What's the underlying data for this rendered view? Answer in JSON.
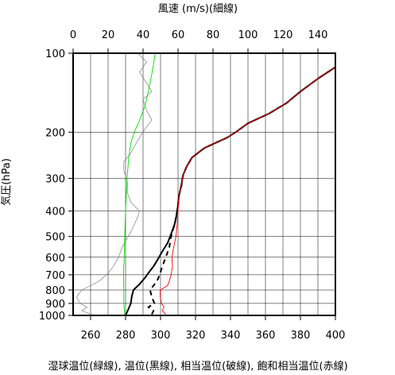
{
  "chart_data": {
    "type": "line",
    "title": "",
    "top_axis_label": "風速 (m/s)(細線)",
    "left_axis_label": "気圧(hPa)",
    "bottom_axis_label": "湿球温位(緑線), 温位(黒線), 相当温位(破線), 飽和相当温位(赤線)",
    "bottom_axis": {
      "range": [
        250,
        400
      ],
      "ticks": [
        "260",
        "280",
        "300",
        "320",
        "340",
        "360",
        "380",
        "400"
      ]
    },
    "top_axis": {
      "range": [
        0,
        150
      ],
      "ticks": [
        "0",
        "20",
        "40",
        "60",
        "80",
        "100",
        "120",
        "140"
      ]
    },
    "pressure_axis": {
      "scale": "log",
      "range": [
        1000,
        100
      ],
      "ticks": [
        "100",
        "200",
        "300",
        "400",
        "500",
        "600",
        "700",
        "800",
        "900",
        "1000"
      ]
    },
    "grid": true,
    "series": [
      {
        "id": "wind",
        "name": "風速",
        "axis": "top",
        "color": "#808080",
        "style": "thin",
        "points": [
          [
            12,
            1000
          ],
          [
            5,
            960
          ],
          [
            8,
            930
          ],
          [
            4,
            900
          ],
          [
            2,
            850
          ],
          [
            5,
            800
          ],
          [
            15,
            740
          ],
          [
            20,
            690
          ],
          [
            23,
            650
          ],
          [
            26,
            600
          ],
          [
            28,
            550
          ],
          [
            30,
            520
          ],
          [
            33,
            480
          ],
          [
            35,
            450
          ],
          [
            37,
            420
          ],
          [
            38,
            400
          ],
          [
            33,
            370
          ],
          [
            31,
            340
          ],
          [
            31,
            310
          ],
          [
            29,
            280
          ],
          [
            29,
            260
          ],
          [
            33,
            240
          ],
          [
            37,
            215
          ],
          [
            41,
            195
          ],
          [
            45,
            180
          ],
          [
            42,
            165
          ],
          [
            40,
            150
          ],
          [
            45,
            140
          ],
          [
            42,
            130
          ],
          [
            38,
            118
          ],
          [
            42,
            108
          ],
          [
            37,
            100
          ]
        ]
      },
      {
        "id": "theta_w",
        "name": "湿球温位",
        "axis": "bottom",
        "color": "#00e000",
        "style": "solid",
        "points": [
          [
            279.5,
            1000
          ],
          [
            279,
            900
          ],
          [
            279,
            800
          ],
          [
            278.8,
            700
          ],
          [
            279.2,
            600
          ],
          [
            279.5,
            500
          ],
          [
            280,
            400
          ],
          [
            280.8,
            300
          ],
          [
            281.8,
            250
          ],
          [
            283,
            220
          ],
          [
            285,
            200
          ],
          [
            288,
            180
          ],
          [
            291,
            160
          ],
          [
            293,
            140
          ],
          [
            295,
            120
          ],
          [
            296,
            110
          ],
          [
            297,
            100
          ]
        ]
      },
      {
        "id": "theta",
        "name": "温位",
        "axis": "bottom",
        "color": "#000000",
        "style": "thick",
        "points": [
          [
            280,
            1000
          ],
          [
            281.5,
            950
          ],
          [
            283,
            900
          ],
          [
            283.5,
            850
          ],
          [
            284.5,
            800
          ],
          [
            288,
            760
          ],
          [
            291,
            720
          ],
          [
            293,
            690
          ],
          [
            296,
            650
          ],
          [
            298.5,
            610
          ],
          [
            301,
            570
          ],
          [
            304,
            530
          ],
          [
            306,
            490
          ],
          [
            308,
            450
          ],
          [
            309,
            420
          ],
          [
            310,
            380
          ],
          [
            310.5,
            350
          ],
          [
            311.8,
            320
          ],
          [
            312.5,
            300
          ],
          [
            313,
            290
          ],
          [
            315,
            270
          ],
          [
            318,
            250
          ],
          [
            325,
            230
          ],
          [
            338,
            210
          ],
          [
            343,
            200
          ],
          [
            350,
            185
          ],
          [
            362,
            170
          ],
          [
            372,
            155
          ],
          [
            380,
            140
          ],
          [
            390,
            125
          ],
          [
            400,
            113
          ]
        ]
      },
      {
        "id": "theta_e",
        "name": "相当温位",
        "axis": "bottom",
        "color": "#000000",
        "style": "dashed",
        "points": [
          [
            295,
            990
          ],
          [
            296,
            960
          ],
          [
            293,
            930
          ],
          [
            296.5,
            900
          ],
          [
            295,
            850
          ],
          [
            294,
            800
          ],
          [
            298,
            740
          ],
          [
            299.5,
            700
          ],
          [
            301,
            650
          ],
          [
            303,
            600
          ],
          [
            305,
            550
          ],
          [
            306,
            500
          ],
          [
            308,
            450
          ],
          [
            309,
            420
          ],
          [
            310,
            380
          ],
          [
            310.5,
            350
          ],
          [
            312,
            320
          ],
          [
            312.5,
            300
          ],
          [
            313,
            290
          ],
          [
            315,
            270
          ],
          [
            318,
            250
          ],
          [
            325,
            230
          ],
          [
            338,
            210
          ],
          [
            343,
            200
          ],
          [
            350,
            185
          ],
          [
            362,
            170
          ],
          [
            372,
            155
          ],
          [
            380,
            140
          ],
          [
            390,
            125
          ],
          [
            400,
            113
          ]
        ]
      },
      {
        "id": "theta_es",
        "name": "飽和相当温位",
        "axis": "bottom",
        "color": "#ff0000",
        "style": "solid",
        "points": [
          [
            303,
            990
          ],
          [
            301,
            960
          ],
          [
            302,
            930
          ],
          [
            300.5,
            900
          ],
          [
            299.8,
            850
          ],
          [
            299.8,
            800
          ],
          [
            304,
            770
          ],
          [
            305,
            740
          ],
          [
            306,
            700
          ],
          [
            306.8,
            650
          ],
          [
            306.5,
            600
          ],
          [
            307.5,
            550
          ],
          [
            308.8,
            500
          ],
          [
            309.5,
            450
          ],
          [
            310,
            400
          ],
          [
            310.5,
            350
          ],
          [
            311.8,
            320
          ],
          [
            312.5,
            300
          ],
          [
            313,
            290
          ],
          [
            315,
            270
          ],
          [
            318,
            250
          ],
          [
            325,
            230
          ],
          [
            338,
            210
          ],
          [
            343,
            200
          ],
          [
            350,
            185
          ],
          [
            362,
            170
          ],
          [
            372,
            155
          ],
          [
            380,
            140
          ],
          [
            390,
            125
          ],
          [
            400,
            113
          ]
        ]
      }
    ]
  }
}
